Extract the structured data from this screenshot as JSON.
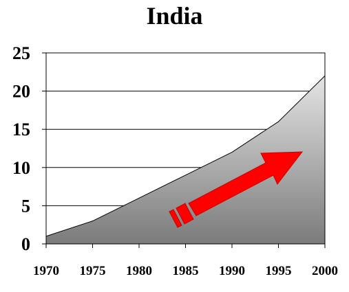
{
  "chart_data": {
    "type": "area",
    "title": "India",
    "xlabel": "",
    "ylabel": "",
    "x": [
      1970,
      1975,
      1980,
      1985,
      1990,
      1995,
      2000
    ],
    "series": [
      {
        "values": [
          1,
          3,
          6,
          9,
          12,
          16,
          22
        ]
      }
    ],
    "xlim": [
      1970,
      2000
    ],
    "ylim": [
      0,
      25
    ],
    "x_ticks": [
      "1970",
      "1975",
      "1980",
      "1985",
      "1990",
      "1995",
      "2000"
    ],
    "y_ticks": [
      "0",
      "5",
      "10",
      "15",
      "20",
      "25"
    ],
    "grid": "horizontal",
    "legend": "none",
    "colors": {
      "area_top": "#e4e4e4",
      "area_bottom": "#7b7b7b",
      "arrow": "#ff0000"
    },
    "annotation": "upward-trend-arrow-icon"
  }
}
